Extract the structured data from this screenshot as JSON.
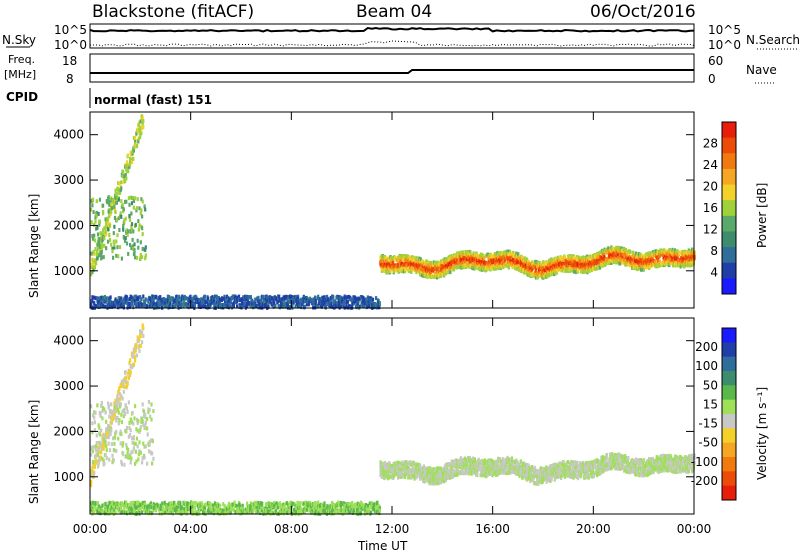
{
  "header": {
    "station": "Blackstone (fitACF)",
    "beam": "Beam 04",
    "date": "06/Oct/2016"
  },
  "strips": {
    "nsky_label": "N.Sky",
    "nsky_ticks": [
      "10^5",
      "10^0"
    ],
    "nsky_right_ticks": [
      "10^5",
      "10^0"
    ],
    "nsearch_label": "N.Search",
    "freq_label_1": "Freq.",
    "freq_label_2": "[MHz]",
    "freq_ticks": [
      "18",
      "8"
    ],
    "nave_ticks": [
      "60",
      "0"
    ],
    "nave_label": "Nave",
    "cpid_label": "CPID",
    "cpid_value": "normal (fast) 151"
  },
  "colors": {
    "power_scale": [
      "#1a1aff",
      "#1f3ea8",
      "#2f6e9a",
      "#3d8c6e",
      "#5aa86a",
      "#9fd13a",
      "#f3d12a",
      "#f5a623",
      "#f07a10",
      "#ec4b08",
      "#e81e0a"
    ],
    "velocity_scale": [
      "#1a1aff",
      "#1f3ea8",
      "#2f6e9a",
      "#3d8c6e",
      "#5ab84a",
      "#9fe05a",
      "#c8c8c4",
      "#f3d12a",
      "#f5a623",
      "#f07a10",
      "#ec4b08",
      "#e81e0a"
    ]
  },
  "chart_data": [
    {
      "type": "heatmap",
      "ylabel": "Slant Range [km]",
      "ylim": [
        180,
        4500
      ],
      "y_ticks": [
        "4000",
        "3000",
        "2000",
        "1000"
      ],
      "colorbar_label": "Power [dB]",
      "colorbar_ticks": [
        "28",
        "24",
        "20",
        "16",
        "12",
        "8",
        "4"
      ],
      "colorbar_range": [
        0,
        32
      ],
      "features": [
        {
          "name": "early-arc",
          "t_start": 0.0,
          "t_end": 2.1,
          "range_start": 1050,
          "range_end": 4400,
          "value": 16
        },
        {
          "name": "early-band",
          "t_start": 0.0,
          "t_end": 2.2,
          "range_start": 1300,
          "range_end": 2700,
          "value": 14
        },
        {
          "name": "main-band",
          "t_start": 11.5,
          "t_end": 24.0,
          "range_center": 1200,
          "width": 350,
          "value": 24
        },
        {
          "name": "near-range",
          "t_start": 0.0,
          "t_end": 11.5,
          "range_start": 200,
          "range_end": 480,
          "value": 6
        }
      ]
    },
    {
      "type": "heatmap",
      "ylabel": "Slant Range [km]",
      "ylim": [
        180,
        4500
      ],
      "y_ticks": [
        "4000",
        "3000",
        "2000",
        "1000"
      ],
      "colorbar_label": "Velocity [m s⁻¹]",
      "colorbar_ticks": [
        "200",
        "100",
        "50",
        "15",
        "-15",
        "-50",
        "-100",
        "-200"
      ],
      "colorbar_range": [
        -250,
        250
      ],
      "x_ticks": [
        "00:00",
        "04:00",
        "08:00",
        "12:00",
        "16:00",
        "20:00",
        "00:00"
      ],
      "xlabel": "Time UT",
      "features": [
        {
          "name": "early-arc",
          "t_start": 0.0,
          "t_end": 2.1,
          "range_start": 1050,
          "range_end": 4300,
          "value": -40
        },
        {
          "name": "early-band",
          "t_start": 0.0,
          "t_end": 2.5,
          "range_start": 1300,
          "range_end": 2700,
          "value": 0
        },
        {
          "name": "main-band",
          "t_start": 11.5,
          "t_end": 24.0,
          "range_center": 1200,
          "width": 350,
          "value": 0
        },
        {
          "name": "near-range",
          "t_start": 0.0,
          "t_end": 11.5,
          "range_start": 200,
          "range_end": 480,
          "value": 40
        }
      ]
    }
  ]
}
